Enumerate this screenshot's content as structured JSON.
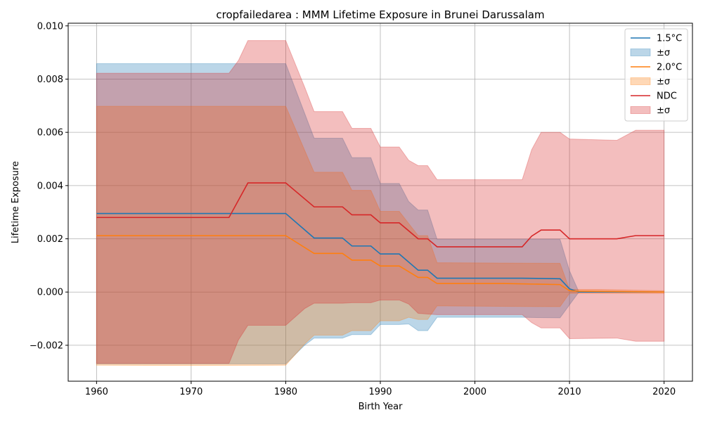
{
  "chart_data": {
    "type": "line",
    "title": "cropfailedarea : MMM Lifetime Exposure in Brunei Darussalam",
    "xlabel": "Birth Year",
    "ylabel": "Lifetime Exposure",
    "xlim": [
      1957,
      2023
    ],
    "ylim": [
      -0.00335,
      0.0101
    ],
    "xticks": [
      1960,
      1970,
      1980,
      1990,
      2000,
      2010,
      2020
    ],
    "xtick_labels": [
      "1960",
      "1970",
      "1980",
      "1990",
      "2000",
      "2010",
      "2020"
    ],
    "yticks": [
      -0.002,
      0.0,
      0.002,
      0.004,
      0.006,
      0.008,
      0.01
    ],
    "ytick_labels": [
      "−0.002",
      "0.000",
      "0.002",
      "0.004",
      "0.006",
      "0.008",
      "0.010"
    ],
    "grid": true,
    "legend_position": "top-right",
    "series": [
      {
        "name": "1.5°C",
        "band_name": "±σ",
        "color": "#1f77b4",
        "points": [
          [
            1960,
            0.00295
          ],
          [
            1974,
            0.00295
          ],
          [
            1980,
            0.00295
          ],
          [
            1983,
            0.00203
          ],
          [
            1986,
            0.00203
          ],
          [
            1987,
            0.00173
          ],
          [
            1989,
            0.00173
          ],
          [
            1990,
            0.00143
          ],
          [
            1992,
            0.00143
          ],
          [
            1994,
            0.00082
          ],
          [
            1995,
            0.00082
          ],
          [
            1996,
            0.00052
          ],
          [
            2005,
            0.00052
          ],
          [
            2009,
            0.0005
          ],
          [
            2010,
            0.00012
          ],
          [
            2011,
            0.0
          ],
          [
            2020,
            0.0
          ]
        ],
        "upper": [
          [
            1960,
            0.00858
          ],
          [
            1974,
            0.00858
          ],
          [
            1980,
            0.00858
          ],
          [
            1983,
            0.00578
          ],
          [
            1986,
            0.00578
          ],
          [
            1987,
            0.00505
          ],
          [
            1989,
            0.00505
          ],
          [
            1990,
            0.00408
          ],
          [
            1992,
            0.00408
          ],
          [
            1993,
            0.0034
          ],
          [
            1994,
            0.00308
          ],
          [
            1995,
            0.00308
          ],
          [
            1996,
            0.00198
          ],
          [
            2009,
            0.00198
          ],
          [
            2010,
            0.0008
          ],
          [
            2011,
            0.0
          ],
          [
            2020,
            0.0
          ]
        ],
        "lower": [
          [
            1960,
            -0.0027
          ],
          [
            1980,
            -0.0027
          ],
          [
            1982,
            -0.002
          ],
          [
            1983,
            -0.00173
          ],
          [
            1986,
            -0.00173
          ],
          [
            1987,
            -0.0016
          ],
          [
            1989,
            -0.0016
          ],
          [
            1990,
            -0.00122
          ],
          [
            1992,
            -0.00122
          ],
          [
            1993,
            -0.0012
          ],
          [
            1994,
            -0.00145
          ],
          [
            1995,
            -0.00145
          ],
          [
            1996,
            -0.00095
          ],
          [
            2005,
            -0.00095
          ],
          [
            2009,
            -0.00097
          ],
          [
            2010,
            -0.00048
          ],
          [
            2011,
            0.0
          ],
          [
            2020,
            0.0
          ]
        ]
      },
      {
        "name": "2.0°C",
        "band_name": "±σ",
        "color": "#ff7f0e",
        "points": [
          [
            1960,
            0.00212
          ],
          [
            1980,
            0.00212
          ],
          [
            1983,
            0.00145
          ],
          [
            1986,
            0.00145
          ],
          [
            1987,
            0.0012
          ],
          [
            1989,
            0.0012
          ],
          [
            1990,
            0.00098
          ],
          [
            1992,
            0.00098
          ],
          [
            1994,
            0.00055
          ],
          [
            1995,
            0.00055
          ],
          [
            1996,
            0.00032
          ],
          [
            2003,
            0.00032
          ],
          [
            2009,
            0.00028
          ],
          [
            2010,
            5e-05
          ],
          [
            2011,
            3e-05
          ],
          [
            2020,
            0.0
          ]
        ],
        "upper": [
          [
            1960,
            0.00698
          ],
          [
            1980,
            0.00698
          ],
          [
            1983,
            0.0045
          ],
          [
            1986,
            0.0045
          ],
          [
            1987,
            0.00382
          ],
          [
            1989,
            0.00382
          ],
          [
            1990,
            0.00303
          ],
          [
            1992,
            0.00303
          ],
          [
            1994,
            0.00212
          ],
          [
            1995,
            0.00212
          ],
          [
            1996,
            0.0011
          ],
          [
            2009,
            0.00108
          ],
          [
            2010,
            0.0001
          ],
          [
            2013,
            0.0001
          ],
          [
            2020,
            5e-05
          ]
        ],
        "lower": [
          [
            1960,
            -0.00275
          ],
          [
            1968,
            -0.00276
          ],
          [
            1980,
            -0.00275
          ],
          [
            1982,
            -0.00195
          ],
          [
            1983,
            -0.00162
          ],
          [
            1986,
            -0.00162
          ],
          [
            1987,
            -0.00145
          ],
          [
            1989,
            -0.00145
          ],
          [
            1990,
            -0.00108
          ],
          [
            1992,
            -0.00108
          ],
          [
            1993,
            -0.00095
          ],
          [
            1994,
            -0.00103
          ],
          [
            1995,
            -0.00103
          ],
          [
            1996,
            -0.00052
          ],
          [
            2009,
            -0.00055
          ],
          [
            2010,
            -5e-05
          ],
          [
            2020,
            -5e-05
          ]
        ]
      },
      {
        "name": "NDC",
        "band_name": "±σ",
        "color": "#d62728",
        "points": [
          [
            1960,
            0.0028
          ],
          [
            1974,
            0.0028
          ],
          [
            1976,
            0.0041
          ],
          [
            1980,
            0.0041
          ],
          [
            1983,
            0.0032
          ],
          [
            1986,
            0.0032
          ],
          [
            1987,
            0.0029
          ],
          [
            1989,
            0.0029
          ],
          [
            1990,
            0.0026
          ],
          [
            1992,
            0.0026
          ],
          [
            1994,
            0.002
          ],
          [
            1995,
            0.002
          ],
          [
            1996,
            0.0017
          ],
          [
            2002,
            0.0017
          ],
          [
            2005,
            0.0017
          ],
          [
            2006,
            0.0021
          ],
          [
            2007,
            0.00233
          ],
          [
            2009,
            0.00233
          ],
          [
            2010,
            0.002
          ],
          [
            2015,
            0.002
          ],
          [
            2017,
            0.00212
          ],
          [
            2020,
            0.00212
          ]
        ],
        "upper": [
          [
            1960,
            0.00822
          ],
          [
            1974,
            0.00822
          ],
          [
            1975,
            0.0087
          ],
          [
            1976,
            0.00945
          ],
          [
            1980,
            0.00945
          ],
          [
            1982,
            0.0077
          ],
          [
            1983,
            0.00678
          ],
          [
            1986,
            0.00678
          ],
          [
            1987,
            0.00615
          ],
          [
            1989,
            0.00615
          ],
          [
            1990,
            0.00545
          ],
          [
            1992,
            0.00545
          ],
          [
            1993,
            0.00495
          ],
          [
            1994,
            0.00475
          ],
          [
            1995,
            0.00475
          ],
          [
            1996,
            0.00422
          ],
          [
            2005,
            0.00422
          ],
          [
            2006,
            0.00535
          ],
          [
            2007,
            0.006
          ],
          [
            2009,
            0.006
          ],
          [
            2010,
            0.00575
          ],
          [
            2015,
            0.0057
          ],
          [
            2017,
            0.00608
          ],
          [
            2020,
            0.00608
          ]
        ],
        "lower": [
          [
            1960,
            -0.00268
          ],
          [
            1974,
            -0.00268
          ],
          [
            1975,
            -0.0018
          ],
          [
            1976,
            -0.00125
          ],
          [
            1980,
            -0.00125
          ],
          [
            1982,
            -0.00062
          ],
          [
            1983,
            -0.00042
          ],
          [
            1986,
            -0.00042
          ],
          [
            1987,
            -0.0004
          ],
          [
            1989,
            -0.0004
          ],
          [
            1990,
            -0.0003
          ],
          [
            1992,
            -0.0003
          ],
          [
            1993,
            -0.00045
          ],
          [
            1994,
            -0.0008
          ],
          [
            1996,
            -0.00085
          ],
          [
            2005,
            -0.00085
          ],
          [
            2006,
            -0.00115
          ],
          [
            2007,
            -0.00135
          ],
          [
            2009,
            -0.00135
          ],
          [
            2010,
            -0.00175
          ],
          [
            2015,
            -0.00173
          ],
          [
            2017,
            -0.00185
          ],
          [
            2020,
            -0.00185
          ]
        ]
      }
    ]
  }
}
